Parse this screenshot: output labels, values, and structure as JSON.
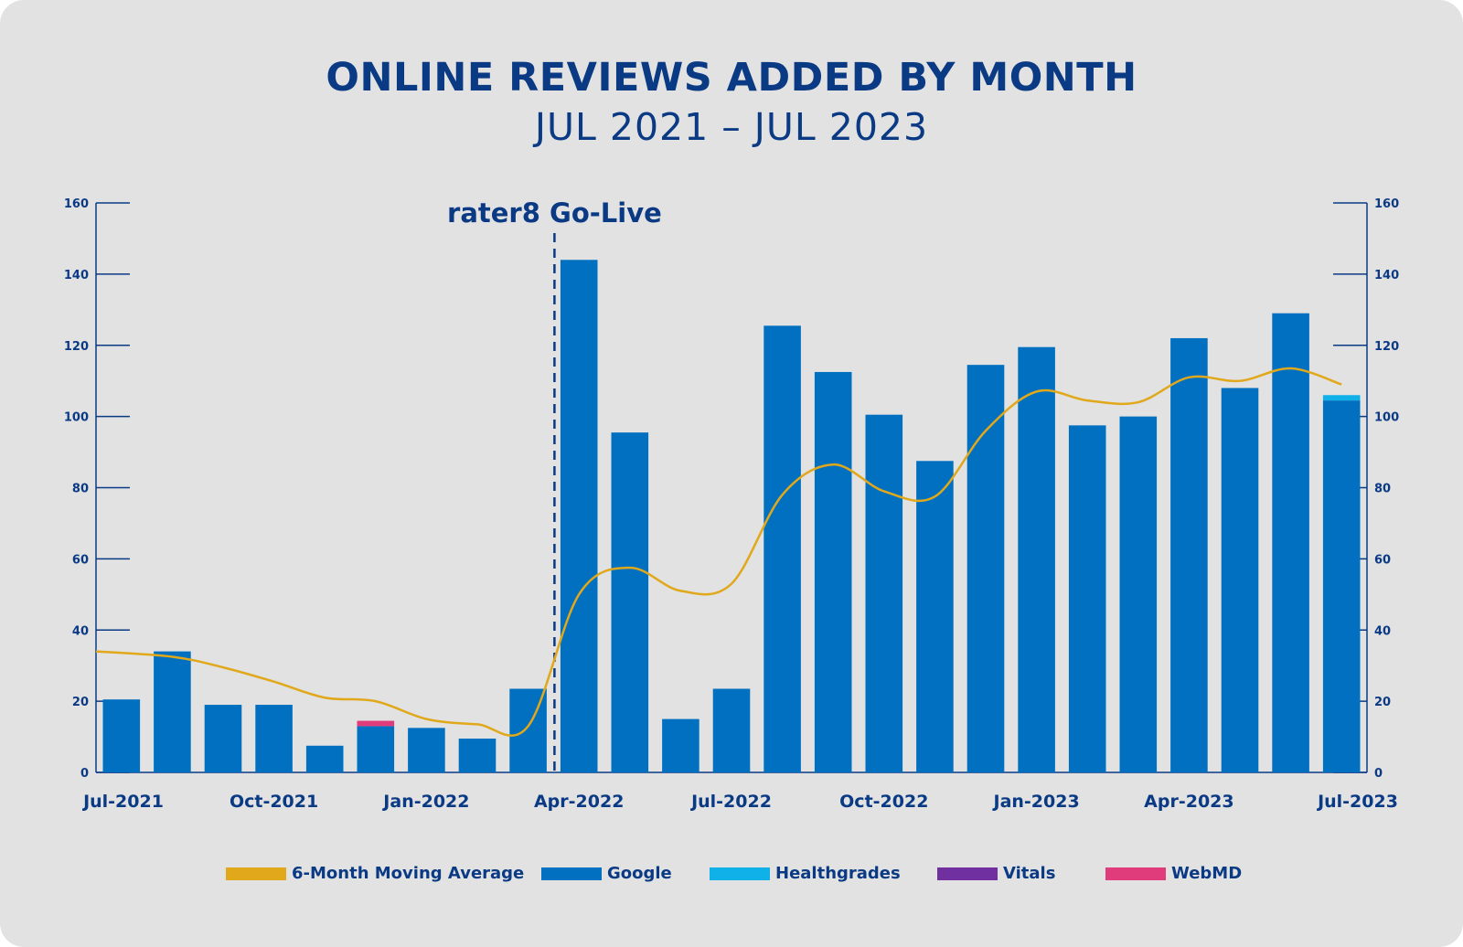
{
  "chart_data": {
    "type": "bar",
    "title": "ONLINE REVIEWS ADDED BY MONTH",
    "subtitle": "JUL 2021 – JUL 2023",
    "annotation": "rater8 Go-Live",
    "annotation_after_month": "Mar-2022",
    "ylim": [
      0,
      160
    ],
    "yticks": [
      0,
      20,
      40,
      60,
      80,
      100,
      120,
      140,
      160
    ],
    "x_tick_labels": [
      "Jul-2021",
      "Oct-2021",
      "Jan-2022",
      "Apr-2022",
      "Jul-2022",
      "Oct-2022",
      "Jan-2023",
      "Apr-2023",
      "Jul-2023"
    ],
    "categories": [
      "Jul-2021",
      "Aug-2021",
      "Sep-2021",
      "Oct-2021",
      "Nov-2021",
      "Dec-2021",
      "Jan-2022",
      "Feb-2022",
      "Mar-2022",
      "Apr-2022",
      "May-2022",
      "Jun-2022",
      "Jul-2022",
      "Aug-2022",
      "Sep-2022",
      "Oct-2022",
      "Nov-2022",
      "Dec-2022",
      "Jan-2023",
      "Feb-2023",
      "Mar-2023",
      "Apr-2023",
      "May-2023",
      "Jun-2023",
      "Jul-2023"
    ],
    "series": [
      {
        "name": "Google",
        "color": "#0270c1",
        "values": [
          20.5,
          34,
          19,
          19,
          7.5,
          13,
          12.5,
          9.5,
          23.5,
          144,
          95.5,
          15,
          23.5,
          125.5,
          112.5,
          100.5,
          87.5,
          114.5,
          119.5,
          97.5,
          100,
          122,
          108,
          129,
          104.5
        ]
      },
      {
        "name": "Healthgrades",
        "color": "#10b0e8",
        "values": [
          0,
          0,
          0,
          0,
          0,
          0,
          0,
          0,
          0,
          0,
          0,
          0,
          0,
          0,
          0,
          0,
          0,
          0,
          0,
          0,
          0,
          0,
          0,
          0,
          1.5
        ]
      },
      {
        "name": "Vitals",
        "color": "#7030a0",
        "values": [
          0,
          0,
          0,
          0,
          0,
          0,
          0,
          0,
          0,
          0,
          0,
          0,
          0,
          0,
          0,
          0,
          0,
          0,
          0,
          0,
          0,
          0,
          0,
          0,
          0
        ]
      },
      {
        "name": "WebMD",
        "color": "#e03c7c",
        "values": [
          0,
          0,
          0,
          0,
          0,
          1.5,
          0,
          0,
          0,
          0,
          0,
          0,
          0,
          0,
          0,
          0,
          0,
          0,
          0,
          0,
          0,
          0,
          0,
          0,
          0
        ]
      }
    ],
    "moving_average": {
      "name": "6-Month Moving Average",
      "color": "#e0a81a",
      "values": [
        34,
        32.5,
        29.5,
        25.5,
        21,
        20,
        15,
        13.5,
        13,
        50,
        57.5,
        51,
        53,
        78,
        86.5,
        79,
        77.5,
        96,
        107,
        104.5,
        104,
        111,
        110,
        113.5,
        109
      ]
    },
    "legend": [
      {
        "label": "6-Month Moving Average",
        "color": "#e0a81a"
      },
      {
        "label": "Google",
        "color": "#0270c1"
      },
      {
        "label": "Healthgrades",
        "color": "#10b0e8"
      },
      {
        "label": "Vitals",
        "color": "#7030a0"
      },
      {
        "label": "WebMD",
        "color": "#e03c7c"
      }
    ],
    "axis_color": "#0b3a85"
  }
}
